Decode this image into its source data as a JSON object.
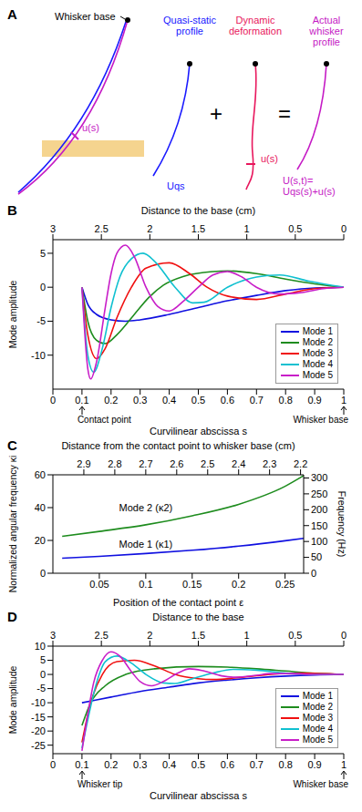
{
  "panel_a": {
    "label": "A",
    "whisker_base": "Whisker base",
    "u_label": "u(s)",
    "quasi_static": "Quasi-static profile",
    "dynamic": "Dynamic deformation",
    "actual": "Actual whisker profile",
    "plus": "+",
    "equals": "=",
    "uqs": "Uqs",
    "u_small": "u(s)",
    "sum": [
      "U(s,t)=",
      "Uqs(s)+u(s)"
    ]
  },
  "chart_data": [
    {
      "panel": "B",
      "type": "line",
      "x2label": "Distance to the base (cm)",
      "xlabel": "Curvilinear abscissa s",
      "ylabel": "Mode amplitude",
      "xlim": [
        0,
        1
      ],
      "xticks": [
        0,
        0.1,
        0.2,
        0.3,
        0.4,
        0.5,
        0.6,
        0.7,
        0.8,
        0.9,
        1
      ],
      "x2lim": [
        3,
        0
      ],
      "x2ticks": [
        3,
        2.5,
        2,
        1.5,
        1,
        0.5,
        0
      ],
      "ylim": [
        -15,
        7
      ],
      "yticks": [
        -10,
        -5,
        0,
        5
      ],
      "legend": "lower right",
      "annotations": [
        {
          "x": 0.1,
          "text": "Contact point"
        },
        {
          "x": 1,
          "text": "Whisker base"
        }
      ],
      "series": [
        {
          "name": "Mode 1",
          "color": "#1010e0",
          "x": [
            0.1,
            0.12,
            0.15,
            0.2,
            0.25,
            0.3,
            0.4,
            0.5,
            0.6,
            0.7,
            0.8,
            0.9,
            1
          ],
          "values": [
            0,
            -2.5,
            -4,
            -4.8,
            -5,
            -4.8,
            -4,
            -3,
            -2,
            -1.2,
            -0.5,
            -0.1,
            0
          ]
        },
        {
          "name": "Mode 2",
          "color": "#1e8c1e",
          "x": [
            0.1,
            0.12,
            0.15,
            0.18,
            0.22,
            0.28,
            0.33,
            0.38,
            0.45,
            0.55,
            0.6,
            0.7,
            0.8,
            0.9,
            1
          ],
          "values": [
            0,
            -5,
            -7.8,
            -8.3,
            -7,
            -4,
            -1.5,
            0.3,
            1.6,
            2.3,
            2.4,
            2,
            1.2,
            0.5,
            0
          ]
        },
        {
          "name": "Mode 3",
          "color": "#f01010",
          "x": [
            0.1,
            0.12,
            0.15,
            0.18,
            0.22,
            0.27,
            0.32,
            0.4,
            0.47,
            0.53,
            0.6,
            0.7,
            0.8,
            0.9,
            1
          ],
          "values": [
            0,
            -7,
            -10.5,
            -9,
            -4.5,
            0,
            2.8,
            3.6,
            2,
            0,
            -1.3,
            -1.8,
            -1,
            -0.2,
            0
          ]
        },
        {
          "name": "Mode 4",
          "color": "#10c0d0",
          "x": [
            0.1,
            0.12,
            0.14,
            0.17,
            0.2,
            0.23,
            0.27,
            0.31,
            0.35,
            0.42,
            0.48,
            0.52,
            0.6,
            0.7,
            0.78,
            0.88,
            1
          ],
          "values": [
            0,
            -10,
            -12.5,
            -9,
            -3,
            1.5,
            4.2,
            5,
            3.8,
            0,
            -2.3,
            -2.2,
            0,
            1.5,
            1.8,
            0.9,
            0
          ]
        },
        {
          "name": "Mode 5",
          "color": "#c81ec8",
          "x": [
            0.1,
            0.12,
            0.13,
            0.15,
            0.18,
            0.2,
            0.22,
            0.25,
            0.28,
            0.32,
            0.36,
            0.4,
            0.45,
            0.5,
            0.55,
            0.6,
            0.65,
            0.7,
            0.78,
            0.85,
            0.93,
            1
          ],
          "values": [
            0,
            -12,
            -13.5,
            -11,
            -3,
            2,
            5,
            6.2,
            4.5,
            0,
            -2.8,
            -3.5,
            -2,
            0,
            1.8,
            2.3,
            1.5,
            0,
            -1,
            -0.8,
            -0.2,
            0
          ]
        }
      ]
    },
    {
      "panel": "C",
      "type": "line",
      "x2label": "Distance from the contact point to whisker base (cm)",
      "xlabel": "Position of the contact point ε",
      "ylabel": "Normalized angular frequency κi",
      "y2label": "Frequency (Hz)",
      "xlim": [
        0,
        0.27
      ],
      "xticks": [
        0.05,
        0.1,
        0.15,
        0.2,
        0.25
      ],
      "x2lim": [
        3,
        2.19
      ],
      "x2ticks": [
        2.9,
        2.8,
        2.7,
        2.6,
        2.5,
        2.4,
        2.3,
        2.2
      ],
      "ylim": [
        0,
        60
      ],
      "yticks": [
        0,
        20,
        40,
        60
      ],
      "y2lim": [
        0,
        310
      ],
      "y2ticks": [
        0,
        50,
        100,
        150,
        200,
        250,
        300
      ],
      "annotations": [
        {
          "x": 0.1,
          "y": 40,
          "text": "Mode 2 (κ2)"
        },
        {
          "x": 0.1,
          "y": 18,
          "text": "Mode 1 (κ1)"
        }
      ],
      "series": [
        {
          "color": "#1010e0",
          "x": [
            0.01,
            0.05,
            0.1,
            0.15,
            0.2,
            0.25,
            0.27
          ],
          "values": [
            9.2,
            10.3,
            12,
            14,
            16.5,
            19.8,
            21.3
          ]
        },
        {
          "color": "#1e8c1e",
          "x": [
            0.01,
            0.05,
            0.1,
            0.15,
            0.2,
            0.25,
            0.27
          ],
          "values": [
            22.5,
            25.5,
            29.5,
            35,
            42,
            53,
            59.5
          ]
        }
      ]
    },
    {
      "panel": "D",
      "type": "line",
      "x2label": "Distance to the base",
      "xlabel": "Curvilinear abscissa s",
      "ylabel": "Mode amplitude",
      "xlim": [
        0,
        1
      ],
      "xticks": [
        0,
        0.1,
        0.2,
        0.3,
        0.4,
        0.5,
        0.6,
        0.7,
        0.8,
        0.9,
        1
      ],
      "x2lim": [
        3,
        0
      ],
      "x2ticks": [
        3,
        2.5,
        2,
        1.5,
        1,
        0.5,
        0
      ],
      "ylim": [
        -28,
        10
      ],
      "yticks": [
        -25,
        -20,
        -15,
        -10,
        -5,
        0,
        5,
        10
      ],
      "legend": "lower right",
      "annotations": [
        {
          "x": 0.1,
          "text": "Whisker tip"
        },
        {
          "x": 1,
          "text": "Whisker base"
        }
      ],
      "series": [
        {
          "name": "Mode 1",
          "color": "#1010e0",
          "x": [
            0.1,
            0.2,
            0.3,
            0.4,
            0.5,
            0.6,
            0.7,
            0.8,
            0.9,
            1
          ],
          "values": [
            -10,
            -8,
            -6,
            -4.5,
            -3,
            -2,
            -1.2,
            -0.6,
            -0.2,
            0
          ]
        },
        {
          "name": "Mode 2",
          "color": "#1e8c1e",
          "x": [
            0.1,
            0.13,
            0.18,
            0.25,
            0.35,
            0.5,
            0.6,
            0.7,
            0.8,
            0.9,
            1
          ],
          "values": [
            -18,
            -10,
            -4,
            0,
            2,
            2.8,
            2.6,
            2,
            1.2,
            0.4,
            0
          ]
        },
        {
          "name": "Mode 3",
          "color": "#f01010",
          "x": [
            0.1,
            0.13,
            0.17,
            0.22,
            0.28,
            0.35,
            0.42,
            0.5,
            0.55,
            0.65,
            0.75,
            0.85,
            1
          ],
          "values": [
            -24,
            -10,
            0,
            4.5,
            5,
            3,
            0,
            -1.5,
            -1.8,
            -1,
            0,
            0.5,
            0
          ]
        },
        {
          "name": "Mode 4",
          "color": "#10c0d0",
          "x": [
            0.1,
            0.12,
            0.15,
            0.18,
            0.22,
            0.27,
            0.32,
            0.38,
            0.42,
            0.48,
            0.55,
            0.62,
            0.7,
            0.8,
            0.9,
            1
          ],
          "values": [
            -26,
            -16,
            -3,
            4.5,
            6.5,
            4,
            0,
            -3,
            -3.2,
            -1.5,
            0.5,
            1.8,
            1.5,
            0.5,
            0,
            0
          ]
        },
        {
          "name": "Mode 5",
          "color": "#c81ec8",
          "x": [
            0.1,
            0.12,
            0.14,
            0.17,
            0.2,
            0.23,
            0.27,
            0.3,
            0.34,
            0.38,
            0.43,
            0.47,
            0.52,
            0.58,
            0.63,
            0.7,
            0.75,
            0.82,
            0.9,
            1
          ],
          "values": [
            -27,
            -14,
            -3,
            5,
            8,
            6.5,
            1,
            -2.5,
            -4,
            -2.5,
            0.5,
            2,
            1.2,
            -0.5,
            -1,
            -0.3,
            0.3,
            0.3,
            0,
            0
          ]
        }
      ]
    }
  ]
}
